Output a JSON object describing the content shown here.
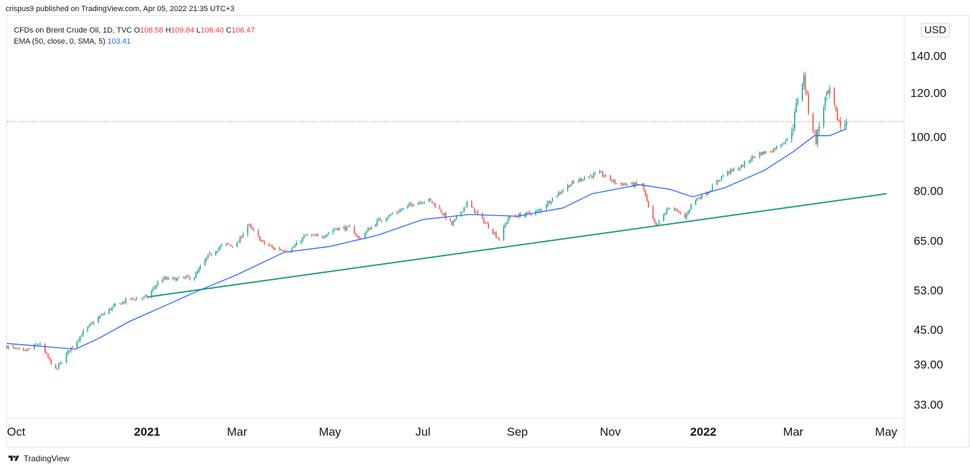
{
  "header": {
    "published": "crispus9 published on TradingView.com, Apr 05, 2022 21:35 UTC+3"
  },
  "legend": {
    "symbol": "CFDs on Brent Crude Oil, 1D, TVC",
    "o_label": "O",
    "o_value": "108.58",
    "h_label": "H",
    "h_value": "109.84",
    "l_label": "L",
    "l_value": "106.40",
    "c_label": "C",
    "c_value": "106.47",
    "ema_label": "EMA (50, close, 0, SMA, 5)",
    "ema_value": "103.41"
  },
  "footer": {
    "brand": "TradingView",
    "logo_icon": "tradingview-logo-icon"
  },
  "colors": {
    "up": "#26a69a",
    "down": "#ef5350",
    "ema": "#2962ff",
    "trend": "#1e9e7e",
    "last_price": "#f23645"
  },
  "chart_data": {
    "type": "candlestick",
    "scale": "log",
    "currency": "USD",
    "last_price": 106.47,
    "y_ticks": [
      33,
      39,
      45,
      53,
      65,
      80,
      100,
      120,
      140
    ],
    "y_tick_labels": [
      "33.00",
      "39.00",
      "45.00",
      "53.00",
      "65.00",
      "80.00",
      "100.00",
      "120.00",
      "140.00"
    ],
    "x_ticks": [
      "2020-10-01",
      "2021-01-01",
      "2021-03-01",
      "2021-05-01",
      "2021-07-01",
      "2021-09-01",
      "2021-11-01",
      "2022-01-01",
      "2022-03-01",
      "2022-05-01"
    ],
    "x_tick_labels": [
      "Oct",
      "2021",
      "Mar",
      "May",
      "Jul",
      "Sep",
      "Nov",
      "2022",
      "Mar",
      "May"
    ],
    "x_tick_bold": [
      false,
      true,
      false,
      false,
      false,
      false,
      false,
      true,
      false,
      false
    ],
    "x_range": [
      "2020-10-01",
      "2022-05-01"
    ],
    "y_range": [
      30,
      142
    ],
    "close_path": [
      [
        "2020-10-01",
        42
      ],
      [
        "2020-10-12",
        41
      ],
      [
        "2020-10-22",
        42.5
      ],
      [
        "2020-11-02",
        38
      ],
      [
        "2020-11-10",
        41
      ],
      [
        "2020-11-20",
        44.5
      ],
      [
        "2020-12-01",
        47.5
      ],
      [
        "2020-12-10",
        49.5
      ],
      [
        "2020-12-20",
        51
      ],
      [
        "2021-01-01",
        51.5
      ],
      [
        "2021-01-10",
        55.5
      ],
      [
        "2021-01-20",
        55.5
      ],
      [
        "2021-02-01",
        56
      ],
      [
        "2021-02-10",
        61
      ],
      [
        "2021-02-20",
        64
      ],
      [
        "2021-03-01",
        64
      ],
      [
        "2021-03-08",
        69.5
      ],
      [
        "2021-03-18",
        64.5
      ],
      [
        "2021-03-25",
        63
      ],
      [
        "2021-04-05",
        62.5
      ],
      [
        "2021-04-15",
        66.5
      ],
      [
        "2021-04-25",
        66
      ],
      [
        "2021-05-05",
        68.5
      ],
      [
        "2021-05-15",
        68.5
      ],
      [
        "2021-05-20",
        65.5
      ],
      [
        "2021-06-01",
        70.5
      ],
      [
        "2021-06-15",
        73.5
      ],
      [
        "2021-06-25",
        76
      ],
      [
        "2021-07-05",
        77
      ],
      [
        "2021-07-10",
        75
      ],
      [
        "2021-07-20",
        69.5
      ],
      [
        "2021-07-30",
        76
      ],
      [
        "2021-08-10",
        70.5
      ],
      [
        "2021-08-20",
        65.5
      ],
      [
        "2021-08-26",
        71.5
      ],
      [
        "2021-09-05",
        72.5
      ],
      [
        "2021-09-15",
        73.5
      ],
      [
        "2021-09-25",
        78
      ],
      [
        "2021-10-05",
        82
      ],
      [
        "2021-10-15",
        84.5
      ],
      [
        "2021-10-25",
        86
      ],
      [
        "2021-11-05",
        82.5
      ],
      [
        "2021-11-15",
        82
      ],
      [
        "2021-11-22",
        82
      ],
      [
        "2021-11-27",
        72.5
      ],
      [
        "2021-12-01",
        69
      ],
      [
        "2021-12-10",
        75
      ],
      [
        "2021-12-20",
        71.5
      ],
      [
        "2021-12-25",
        76.5
      ],
      [
        "2022-01-05",
        80
      ],
      [
        "2022-01-15",
        86
      ],
      [
        "2022-01-25",
        88
      ],
      [
        "2022-02-05",
        93
      ],
      [
        "2022-02-15",
        94.5
      ],
      [
        "2022-02-25",
        99
      ],
      [
        "2022-03-01",
        105
      ],
      [
        "2022-03-04",
        118
      ],
      [
        "2022-03-08",
        128
      ],
      [
        "2022-03-11",
        112
      ],
      [
        "2022-03-16",
        98.5
      ],
      [
        "2022-03-22",
        117
      ],
      [
        "2022-03-25",
        120
      ],
      [
        "2022-03-29",
        110
      ],
      [
        "2022-04-01",
        104.5
      ],
      [
        "2022-04-05",
        106.47
      ]
    ],
    "ema_path": [
      [
        "2020-10-01",
        42.5
      ],
      [
        "2020-11-15",
        41.5
      ],
      [
        "2020-12-01",
        43.5
      ],
      [
        "2020-12-20",
        46.5
      ],
      [
        "2021-01-15",
        50
      ],
      [
        "2021-02-01",
        52.5
      ],
      [
        "2021-03-01",
        56.5
      ],
      [
        "2021-04-01",
        62
      ],
      [
        "2021-05-01",
        63.5
      ],
      [
        "2021-06-01",
        66.5
      ],
      [
        "2021-07-01",
        71
      ],
      [
        "2021-08-01",
        72.5
      ],
      [
        "2021-09-01",
        72
      ],
      [
        "2021-10-01",
        74.5
      ],
      [
        "2021-10-20",
        79
      ],
      [
        "2021-11-20",
        82
      ],
      [
        "2021-12-10",
        80.5
      ],
      [
        "2021-12-25",
        78
      ],
      [
        "2022-01-15",
        81
      ],
      [
        "2022-02-10",
        87
      ],
      [
        "2022-03-01",
        94
      ],
      [
        "2022-03-15",
        100.5
      ],
      [
        "2022-03-25",
        100.5
      ],
      [
        "2022-04-05",
        103.41
      ]
    ],
    "trendline": [
      [
        "2021-01-01",
        51.5
      ],
      [
        "2022-05-01",
        79
      ]
    ]
  }
}
